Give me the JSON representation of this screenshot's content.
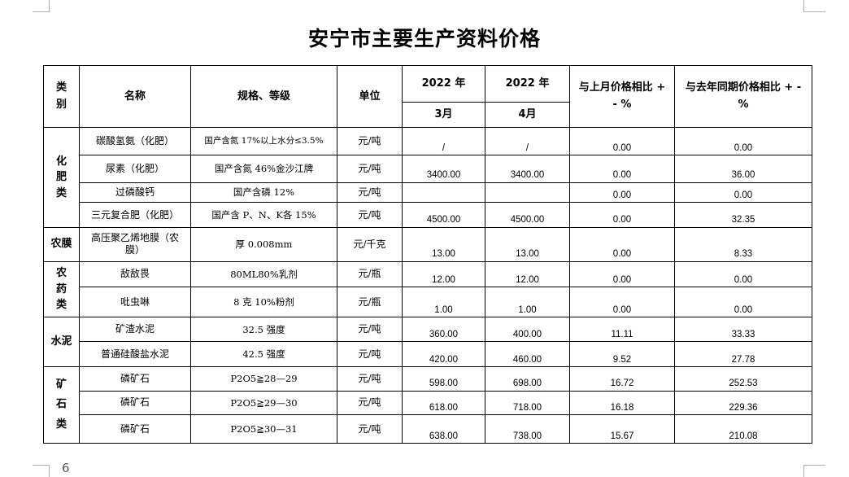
{
  "title": "安宁市主要生产资料价格",
  "page_number": "6",
  "headers": {
    "category": "类别",
    "name": "名称",
    "spec": "规格、等级",
    "unit": "单位",
    "year1": "2022 年",
    "year2": "2022 年",
    "month1": "3月",
    "month2": "4月",
    "mom": "与上月价格相比 + - %",
    "yoy": "与去年同期价格相比 + - %"
  },
  "categories": [
    "化肥类",
    "农膜",
    "农药类",
    "水泥",
    "矿石类"
  ],
  "rows": [
    {
      "name": "碳酸氢氨（化肥）",
      "spec": "国产含氮 17%以上水分≤3.5%",
      "unit": "元/吨",
      "mar": "/",
      "apr": "/",
      "mom": "0.00",
      "yoy": "0.00"
    },
    {
      "name": "尿素（化肥）",
      "spec": "国产含氮 46%金沙江牌",
      "unit": "元/吨",
      "mar": "3400.00",
      "apr": "3400.00",
      "mom": "0.00",
      "yoy": "36.00"
    },
    {
      "name": "过磷酸钙",
      "spec": "国产含磷 12%",
      "unit": "元/吨",
      "mar": "",
      "apr": "",
      "mom": "0.00",
      "yoy": "0.00"
    },
    {
      "name": "三元复合肥（化肥）",
      "spec": "国产含 P、N、K各 15%",
      "unit": "元/吨",
      "mar": "4500.00",
      "apr": "4500.00",
      "mom": "0.00",
      "yoy": "32.35"
    },
    {
      "name": "高压聚乙烯地膜（农膜）",
      "spec": "厚 0.008mm",
      "unit": "元/千克",
      "mar": "13.00",
      "apr": "13.00",
      "mom": "0.00",
      "yoy": "8.33"
    },
    {
      "name": "敌敌畏",
      "spec": "80ML80%乳剂",
      "unit": "元/瓶",
      "mar": "12.00",
      "apr": "12.00",
      "mom": "0.00",
      "yoy": "0.00"
    },
    {
      "name": "吡虫啉",
      "spec": "8 克 10%粉剂",
      "unit": "元/瓶",
      "mar": "1.00",
      "apr": "1.00",
      "mom": "0.00",
      "yoy": "0.00"
    },
    {
      "name": "矿渣水泥",
      "spec": "32.5 强度",
      "unit": "元/吨",
      "mar": "360.00",
      "apr": "400.00",
      "mom": "11.11",
      "yoy": "33.33"
    },
    {
      "name": "普通硅酸盐水泥",
      "spec": "42.5 强度",
      "unit": "元/吨",
      "mar": "420.00",
      "apr": "460.00",
      "mom": "9.52",
      "yoy": "27.78"
    },
    {
      "name": "磷矿石",
      "spec": "P2O5≧28—29",
      "unit": "元/吨",
      "mar": "598.00",
      "apr": "698.00",
      "mom": "16.72",
      "yoy": "252.53"
    },
    {
      "name": "磷矿石",
      "spec": "P2O5≧29—30",
      "unit": "元/吨",
      "mar": "618.00",
      "apr": "718.00",
      "mom": "16.18",
      "yoy": "229.36"
    },
    {
      "name": "磷矿石",
      "spec": "P2O5≧30—31",
      "unit": "元/吨",
      "mar": "638.00",
      "apr": "738.00",
      "mom": "15.67",
      "yoy": "210.08"
    }
  ]
}
